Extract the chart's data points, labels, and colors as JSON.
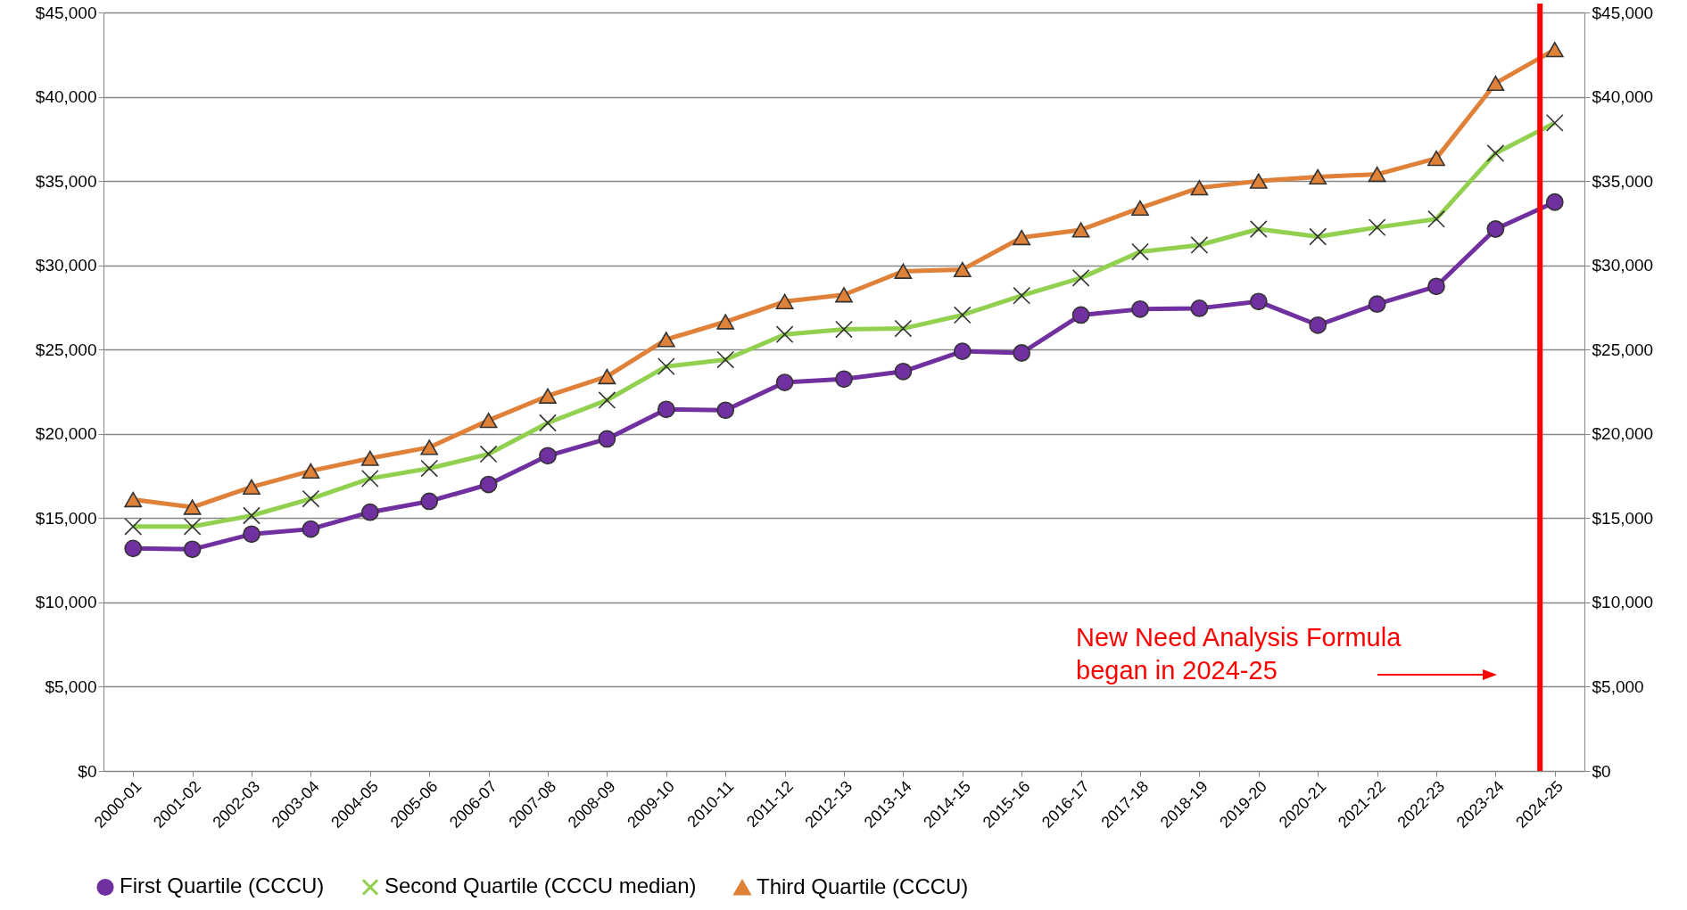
{
  "chart_data": {
    "type": "line",
    "categories": [
      "2000-01",
      "2001-02",
      "2002-03",
      "2003-04",
      "2004-05",
      "2005-06",
      "2006-07",
      "2007-08",
      "2008-09",
      "2009-10",
      "2010-11",
      "2011-12",
      "2012-13",
      "2013-14",
      "2014-15",
      "2015-16",
      "2016-17",
      "2017-18",
      "2018-19",
      "2019-20",
      "2020-21",
      "2021-22",
      "2022-23",
      "2023-24",
      "2024-25"
    ],
    "series": [
      {
        "name": "First Quartile (CCCU)",
        "color": "#7030a0",
        "marker": "circle",
        "values": [
          13200,
          13150,
          14050,
          14350,
          15350,
          16000,
          17000,
          18700,
          19700,
          21450,
          21400,
          23050,
          23250,
          23700,
          24900,
          24800,
          27050,
          27400,
          27450,
          27850,
          26450,
          27700,
          28750,
          32150,
          33750
        ]
      },
      {
        "name": "Second Quartile (CCCU median)",
        "color": "#92d050",
        "marker": "cross",
        "values": [
          14500,
          14500,
          15150,
          16150,
          17350,
          17950,
          18800,
          20650,
          22000,
          24000,
          24400,
          25900,
          26200,
          26250,
          27050,
          28200,
          29250,
          30800,
          31200,
          32150,
          31700,
          32250,
          32750,
          36650,
          38450
        ]
      },
      {
        "name": "Third Quartile (CCCU)",
        "color": "#e0813a",
        "marker": "triangle",
        "values": [
          16100,
          15650,
          16850,
          17800,
          18550,
          19200,
          20800,
          22250,
          23400,
          25600,
          26650,
          27850,
          28250,
          29650,
          29750,
          31650,
          32100,
          33400,
          34600,
          35000,
          35250,
          35400,
          36350,
          40800,
          42800
        ]
      }
    ],
    "ylim": [
      0,
      45000
    ],
    "yticks": [
      {
        "value": 0,
        "label": "$0"
      },
      {
        "value": 5000,
        "label": "$5,000"
      },
      {
        "value": 10000,
        "label": "$10,000"
      },
      {
        "value": 15000,
        "label": "$15,000"
      },
      {
        "value": 20000,
        "label": "$20,000"
      },
      {
        "value": 25000,
        "label": "$25,000"
      },
      {
        "value": 30000,
        "label": "$30,000"
      },
      {
        "value": 35000,
        "label": "$35,000"
      },
      {
        "value": 40000,
        "label": "$40,000"
      },
      {
        "value": 45000,
        "label": "$45,000"
      }
    ],
    "y2lim": [
      0,
      45000
    ],
    "y2ticks": [
      {
        "value": 0,
        "label": "$0"
      },
      {
        "value": 5000,
        "label": "$5,000"
      },
      {
        "value": 10000,
        "label": "$10,000"
      },
      {
        "value": 15000,
        "label": "$15,000"
      },
      {
        "value": 20000,
        "label": "$20,000"
      },
      {
        "value": 25000,
        "label": "$25,000"
      },
      {
        "value": 30000,
        "label": "$30,000"
      },
      {
        "value": 35000,
        "label": "$35,000"
      },
      {
        "value": 40000,
        "label": "$40,000"
      },
      {
        "value": 45000,
        "label": "$45,000"
      }
    ],
    "grid": "y",
    "legend": "bottom",
    "ref_lines": [
      {
        "axis": "x",
        "value": "2024-25",
        "color": "#ff0000"
      }
    ],
    "annotations": [
      "New Need Analysis Formula\nbegan in 2024-25"
    ]
  }
}
